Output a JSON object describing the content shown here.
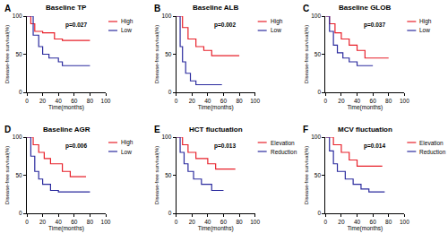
{
  "chart_data": [
    {
      "type": "line",
      "line_style": "step",
      "panel": "A",
      "title": "Baseline TP",
      "annotation": "p=0.027",
      "x_label": "Time(months)",
      "y_label": "Disease-free survival(%)",
      "xlim": [
        0,
        100
      ],
      "ylim": [
        0,
        100
      ],
      "xticks": [
        0,
        20,
        40,
        60,
        80,
        100
      ],
      "yticks": [
        0,
        50,
        100
      ],
      "grid": false,
      "legend": "right",
      "series": [
        {
          "name": "High",
          "color": "#e8202a",
          "x": [
            0,
            5,
            10,
            20,
            35,
            45,
            80
          ],
          "values": [
            100,
            90,
            80,
            78,
            70,
            68,
            68
          ]
        },
        {
          "name": "Low",
          "color": "#2b2b9e",
          "x": [
            0,
            8,
            15,
            20,
            28,
            40,
            45,
            80
          ],
          "values": [
            100,
            75,
            60,
            50,
            45,
            40,
            35,
            35
          ]
        }
      ]
    },
    {
      "type": "line",
      "line_style": "step",
      "panel": "B",
      "title": "Baseline ALB",
      "annotation": "p=0.002",
      "x_label": "Time(months)",
      "y_label": "Disease-free survival(%)",
      "xlim": [
        0,
        100
      ],
      "ylim": [
        0,
        100
      ],
      "xticks": [
        0,
        20,
        40,
        60,
        80,
        100
      ],
      "yticks": [
        0,
        50,
        100
      ],
      "grid": false,
      "legend": "right",
      "series": [
        {
          "name": "High",
          "color": "#e8202a",
          "x": [
            0,
            8,
            15,
            25,
            35,
            45,
            80
          ],
          "values": [
            100,
            85,
            70,
            60,
            55,
            48,
            48
          ]
        },
        {
          "name": "Low",
          "color": "#2b2b9e",
          "x": [
            0,
            5,
            8,
            12,
            18,
            25,
            58
          ],
          "values": [
            100,
            60,
            40,
            25,
            15,
            10,
            10
          ]
        }
      ]
    },
    {
      "type": "line",
      "line_style": "step",
      "panel": "C",
      "title": "Baseline GLOB",
      "annotation": "p=0.037",
      "x_label": "Time(months)",
      "y_label": "Disease-free survival(%)",
      "xlim": [
        0,
        100
      ],
      "ylim": [
        0,
        100
      ],
      "xticks": [
        0,
        20,
        40,
        60,
        80,
        100
      ],
      "yticks": [
        0,
        50,
        100
      ],
      "grid": false,
      "legend": "right",
      "series": [
        {
          "name": "High",
          "color": "#e8202a",
          "x": [
            0,
            5,
            12,
            20,
            30,
            40,
            50,
            80
          ],
          "values": [
            100,
            90,
            78,
            70,
            62,
            55,
            45,
            45
          ]
        },
        {
          "name": "Low",
          "color": "#2b2b9e",
          "x": [
            0,
            5,
            10,
            15,
            22,
            30,
            40,
            60
          ],
          "values": [
            100,
            80,
            62,
            52,
            45,
            40,
            35,
            35
          ]
        }
      ]
    },
    {
      "type": "line",
      "line_style": "step",
      "panel": "D",
      "title": "Baseline AGR",
      "annotation": "p=0.006",
      "x_label": "Time(months)",
      "y_label": "Disease-free survival(%)",
      "xlim": [
        0,
        100
      ],
      "ylim": [
        0,
        100
      ],
      "xticks": [
        0,
        20,
        40,
        60,
        80,
        100
      ],
      "yticks": [
        0,
        50,
        100
      ],
      "grid": false,
      "legend": "right",
      "series": [
        {
          "name": "High",
          "color": "#e8202a",
          "x": [
            0,
            8,
            15,
            22,
            30,
            45,
            55,
            75
          ],
          "values": [
            100,
            90,
            80,
            72,
            65,
            55,
            48,
            48
          ]
        },
        {
          "name": "Low",
          "color": "#2b2b9e",
          "x": [
            0,
            5,
            10,
            15,
            20,
            30,
            40,
            80
          ],
          "values": [
            100,
            75,
            55,
            45,
            38,
            30,
            28,
            28
          ]
        }
      ]
    },
    {
      "type": "line",
      "line_style": "step",
      "panel": "E",
      "title": "HCT fluctuation",
      "annotation": "p=0.013",
      "x_label": "Time(months)",
      "y_label": "Disease-free survival(%)",
      "xlim": [
        0,
        100
      ],
      "ylim": [
        0,
        100
      ],
      "xticks": [
        0,
        20,
        40,
        60,
        80,
        100
      ],
      "yticks": [
        0,
        50,
        100
      ],
      "grid": false,
      "legend": "right",
      "series": [
        {
          "name": "Elevation",
          "color": "#e8202a",
          "x": [
            0,
            8,
            15,
            25,
            40,
            50,
            75
          ],
          "values": [
            100,
            90,
            80,
            72,
            65,
            58,
            58
          ]
        },
        {
          "name": "Reduction",
          "color": "#2b2b9e",
          "x": [
            0,
            5,
            10,
            15,
            22,
            32,
            45,
            60
          ],
          "values": [
            100,
            80,
            65,
            55,
            45,
            38,
            30,
            30
          ]
        }
      ]
    },
    {
      "type": "line",
      "line_style": "step",
      "panel": "F",
      "title": "MCV fluctuation",
      "annotation": "p=0.014",
      "x_label": "Time(months)",
      "y_label": "Disease-free survival(%)",
      "xlim": [
        0,
        100
      ],
      "ylim": [
        0,
        100
      ],
      "xticks": [
        0,
        20,
        40,
        60,
        80,
        100
      ],
      "yticks": [
        0,
        50,
        100
      ],
      "grid": false,
      "legend": "right",
      "series": [
        {
          "name": "Elevation",
          "color": "#e8202a",
          "x": [
            0,
            10,
            20,
            30,
            40,
            72
          ],
          "values": [
            100,
            90,
            80,
            70,
            62,
            62
          ]
        },
        {
          "name": "Reduction",
          "color": "#2b2b9e",
          "x": [
            0,
            5,
            10,
            15,
            25,
            35,
            45,
            55,
            75
          ],
          "values": [
            100,
            82,
            65,
            55,
            45,
            38,
            32,
            28,
            28
          ]
        }
      ]
    }
  ]
}
